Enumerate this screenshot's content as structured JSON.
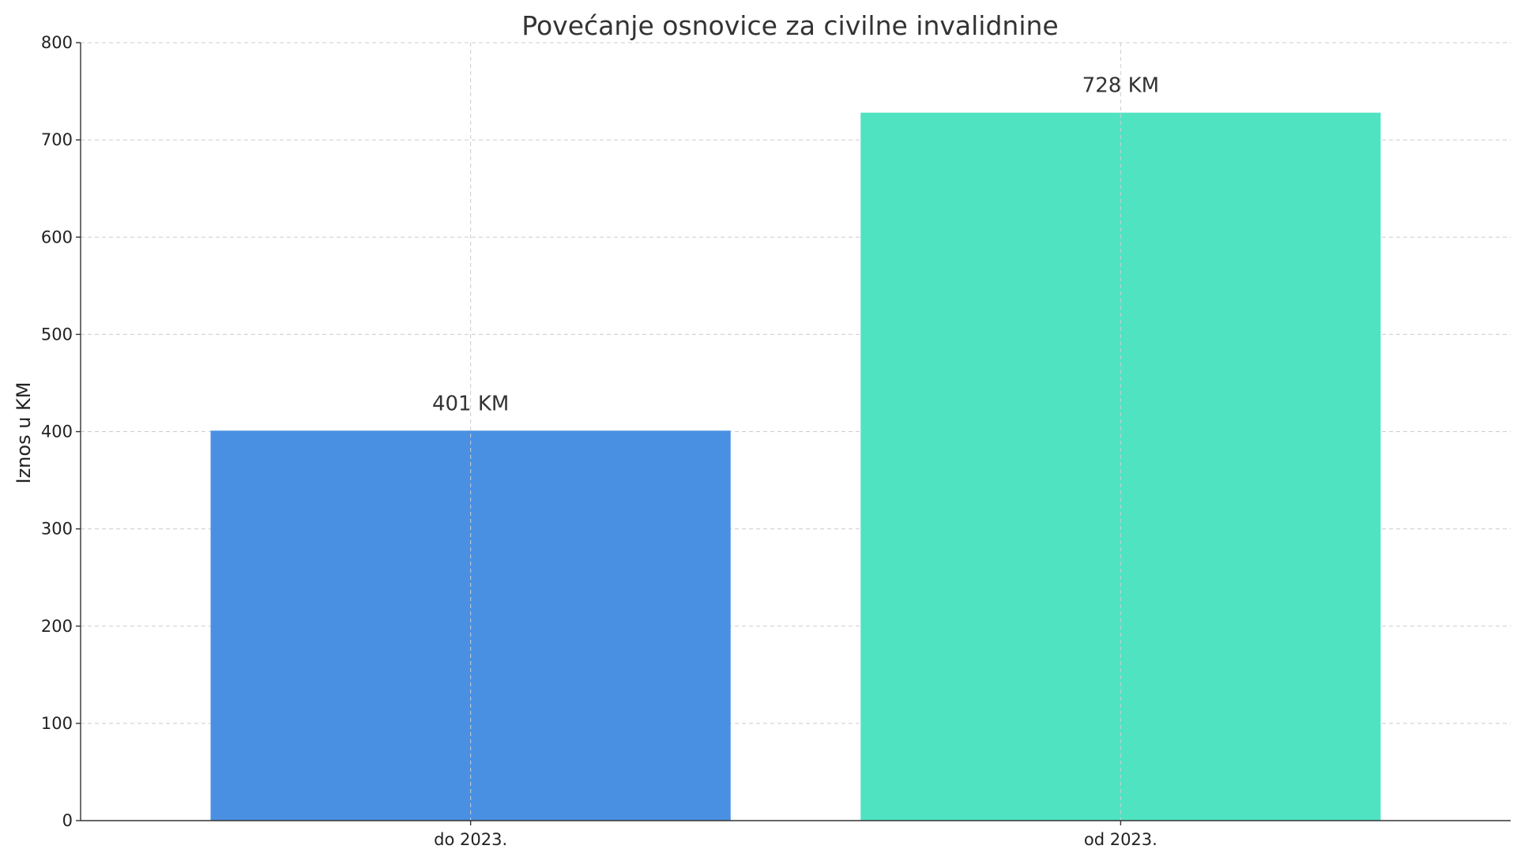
{
  "chart_data": {
    "type": "bar",
    "title": "Povećanje osnovice za civilne invalidnine",
    "xlabel": "",
    "ylabel": "Iznos u KM",
    "categories": [
      "do 2023.",
      "od 2023."
    ],
    "values": [
      401,
      728
    ],
    "data_labels": [
      "401 KM",
      "728 KM"
    ],
    "colors": [
      "#4a90e2",
      "#50e3c2"
    ],
    "ylim": [
      0,
      800
    ],
    "yticks": [
      0,
      100,
      200,
      300,
      400,
      500,
      600,
      700,
      800
    ],
    "grid": true
  }
}
